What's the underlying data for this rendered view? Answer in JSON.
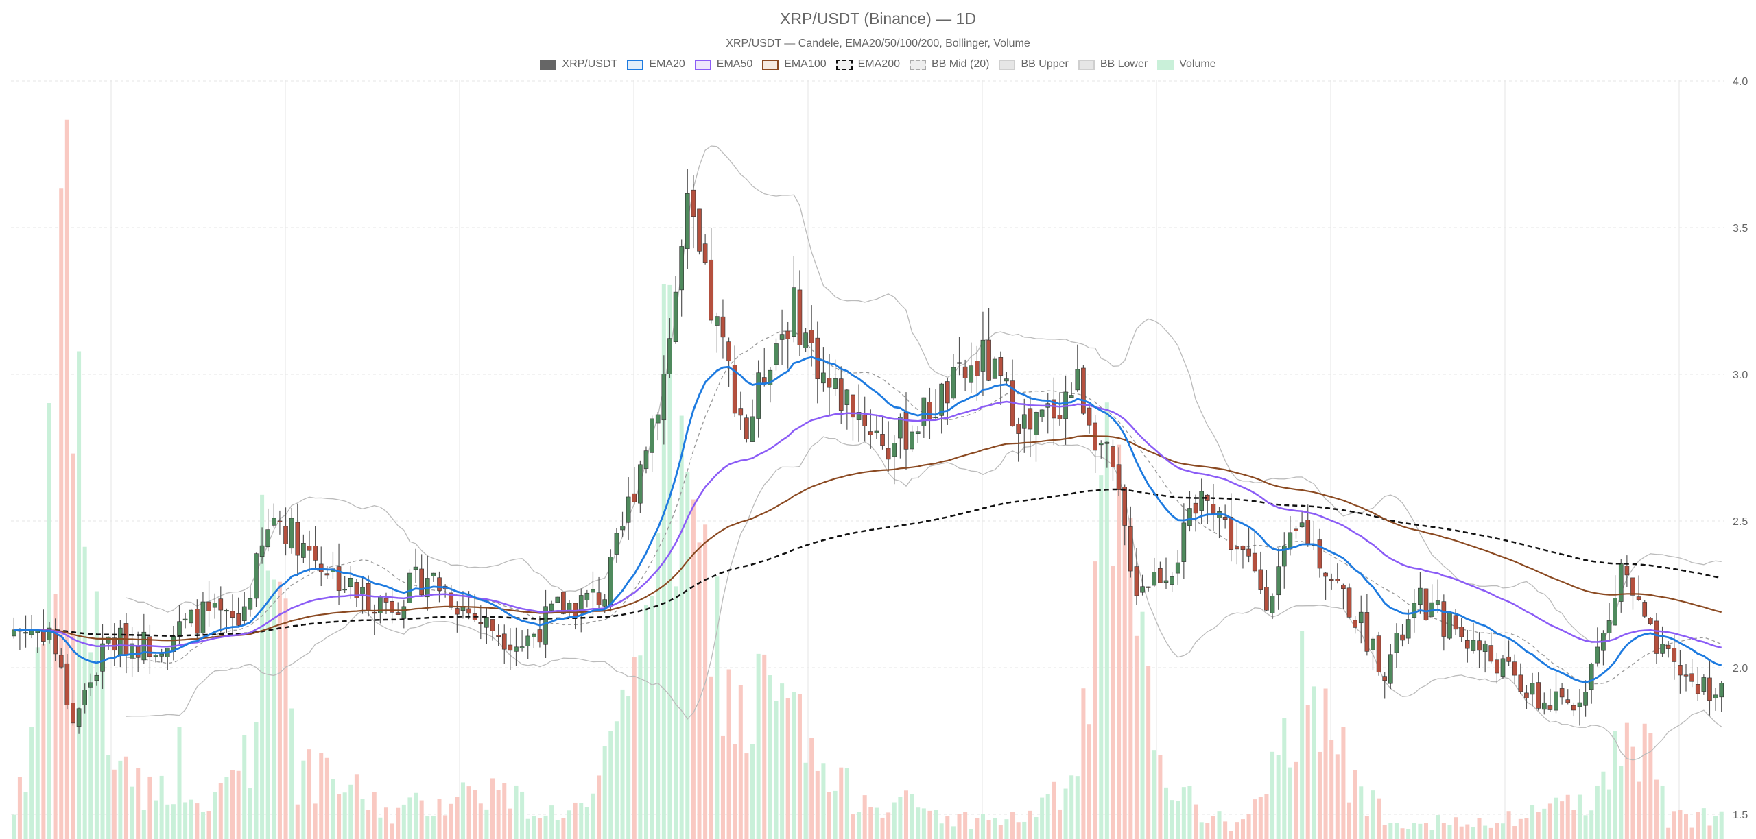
{
  "chart_data": {
    "type": "candlestick",
    "title": "XRP/USDT (Binance) — 1D",
    "subtitle": "XRP/USDT — Candele, EMA20/50/100/200, Bollinger, Volume",
    "ylim": [
      1.5,
      4.0
    ],
    "yticks": [
      "1.5",
      "2.0",
      "2.5",
      "3.0",
      "3.5",
      "4.0"
    ],
    "grid": true,
    "legend_position": "top-center",
    "legend": [
      {
        "label": "XRP/USDT",
        "fill": "#666666",
        "stroke": "#666666",
        "dash": false
      },
      {
        "label": "EMA20",
        "fill": "#e3eef9",
        "stroke": "#1e7be0",
        "dash": false
      },
      {
        "label": "EMA50",
        "fill": "#eee6fb",
        "stroke": "#8b5cf6",
        "dash": false
      },
      {
        "label": "EMA100",
        "fill": "#f6ebe2",
        "stroke": "#8b4a22",
        "dash": false
      },
      {
        "label": "EMA200",
        "fill": "#f2f2f2",
        "stroke": "#111111",
        "dash": true
      },
      {
        "label": "BB Mid (20)",
        "fill": "#eeeeee",
        "stroke": "#aaaaaa",
        "dash": true
      },
      {
        "label": "BB Upper",
        "fill": "#e6e6e6",
        "stroke": "#cfcfcf",
        "dash": false
      },
      {
        "label": "BB Lower",
        "fill": "#e6e6e6",
        "stroke": "#cfcfcf",
        "dash": false
      },
      {
        "label": "Volume",
        "fill": "#c9f0d9",
        "stroke": "#c9f0d9",
        "dash": false
      }
    ],
    "colors": {
      "up": "#4f8a5d",
      "down": "#b5503e",
      "wick": "#555555",
      "vol_up": "#c9f0d9",
      "vol_down": "#f9c9c2",
      "ema20": "#1e7be0",
      "ema50": "#8b5cf6",
      "ema100": "#8b4a22",
      "ema200": "#111111",
      "bb_mid": "#999999",
      "bb_band": "#bbbbbb",
      "grid": "#e6e6e6"
    },
    "anchors": {
      "close": [
        [
          0,
          2.13
        ],
        [
          6,
          2.13
        ],
        [
          10,
          1.82
        ],
        [
          16,
          2.09
        ],
        [
          24,
          2.08
        ],
        [
          32,
          2.18
        ],
        [
          38,
          2.15
        ],
        [
          44,
          2.52
        ],
        [
          52,
          2.36
        ],
        [
          58,
          2.25
        ],
        [
          64,
          2.22
        ],
        [
          70,
          2.32
        ],
        [
          78,
          2.17
        ],
        [
          86,
          2.08
        ],
        [
          92,
          2.2
        ],
        [
          100,
          2.25
        ],
        [
          110,
          3.0
        ],
        [
          114,
          3.55
        ],
        [
          118,
          3.22
        ],
        [
          124,
          2.8
        ],
        [
          128,
          3.08
        ],
        [
          132,
          3.22
        ],
        [
          138,
          2.95
        ],
        [
          142,
          2.9
        ],
        [
          148,
          2.75
        ],
        [
          156,
          2.9
        ],
        [
          164,
          3.05
        ],
        [
          172,
          2.8
        ],
        [
          180,
          2.97
        ],
        [
          186,
          2.65
        ],
        [
          190,
          2.28
        ],
        [
          196,
          2.35
        ],
        [
          202,
          2.62
        ],
        [
          206,
          2.44
        ],
        [
          212,
          2.25
        ],
        [
          218,
          2.48
        ],
        [
          224,
          2.28
        ],
        [
          232,
          2.0
        ],
        [
          238,
          2.22
        ],
        [
          244,
          2.13
        ],
        [
          252,
          2.0
        ],
        [
          258,
          1.88
        ],
        [
          264,
          1.87
        ],
        [
          270,
          2.15
        ],
        [
          272,
          2.35
        ],
        [
          278,
          2.05
        ],
        [
          284,
          1.95
        ],
        [
          289,
          1.92
        ]
      ],
      "volume": [
        [
          0,
          0.05
        ],
        [
          4,
          0.2
        ],
        [
          8,
          0.7
        ],
        [
          9,
          1.0
        ],
        [
          12,
          0.45
        ],
        [
          16,
          0.15
        ],
        [
          24,
          0.06
        ],
        [
          28,
          0.12
        ],
        [
          32,
          0.03
        ],
        [
          40,
          0.15
        ],
        [
          44,
          0.6
        ],
        [
          48,
          0.1
        ],
        [
          56,
          0.08
        ],
        [
          64,
          0.04
        ],
        [
          72,
          0.06
        ],
        [
          80,
          0.08
        ],
        [
          90,
          0.04
        ],
        [
          98,
          0.05
        ],
        [
          104,
          0.2
        ],
        [
          108,
          0.55
        ],
        [
          112,
          0.62
        ],
        [
          114,
          0.45
        ],
        [
          118,
          0.35
        ],
        [
          122,
          0.18
        ],
        [
          128,
          0.22
        ],
        [
          132,
          0.18
        ],
        [
          138,
          0.08
        ],
        [
          148,
          0.06
        ],
        [
          160,
          0.03
        ],
        [
          170,
          0.03
        ],
        [
          176,
          0.06
        ],
        [
          180,
          0.1
        ],
        [
          186,
          0.55
        ],
        [
          188,
          0.4
        ],
        [
          192,
          0.2
        ],
        [
          198,
          0.06
        ],
        [
          206,
          0.02
        ],
        [
          212,
          0.06
        ],
        [
          216,
          0.18
        ],
        [
          220,
          0.3
        ],
        [
          226,
          0.08
        ],
        [
          234,
          0.03
        ],
        [
          250,
          0.02
        ],
        [
          270,
          0.08
        ],
        [
          273,
          0.22
        ],
        [
          280,
          0.03
        ],
        [
          289,
          0.04
        ]
      ]
    }
  }
}
